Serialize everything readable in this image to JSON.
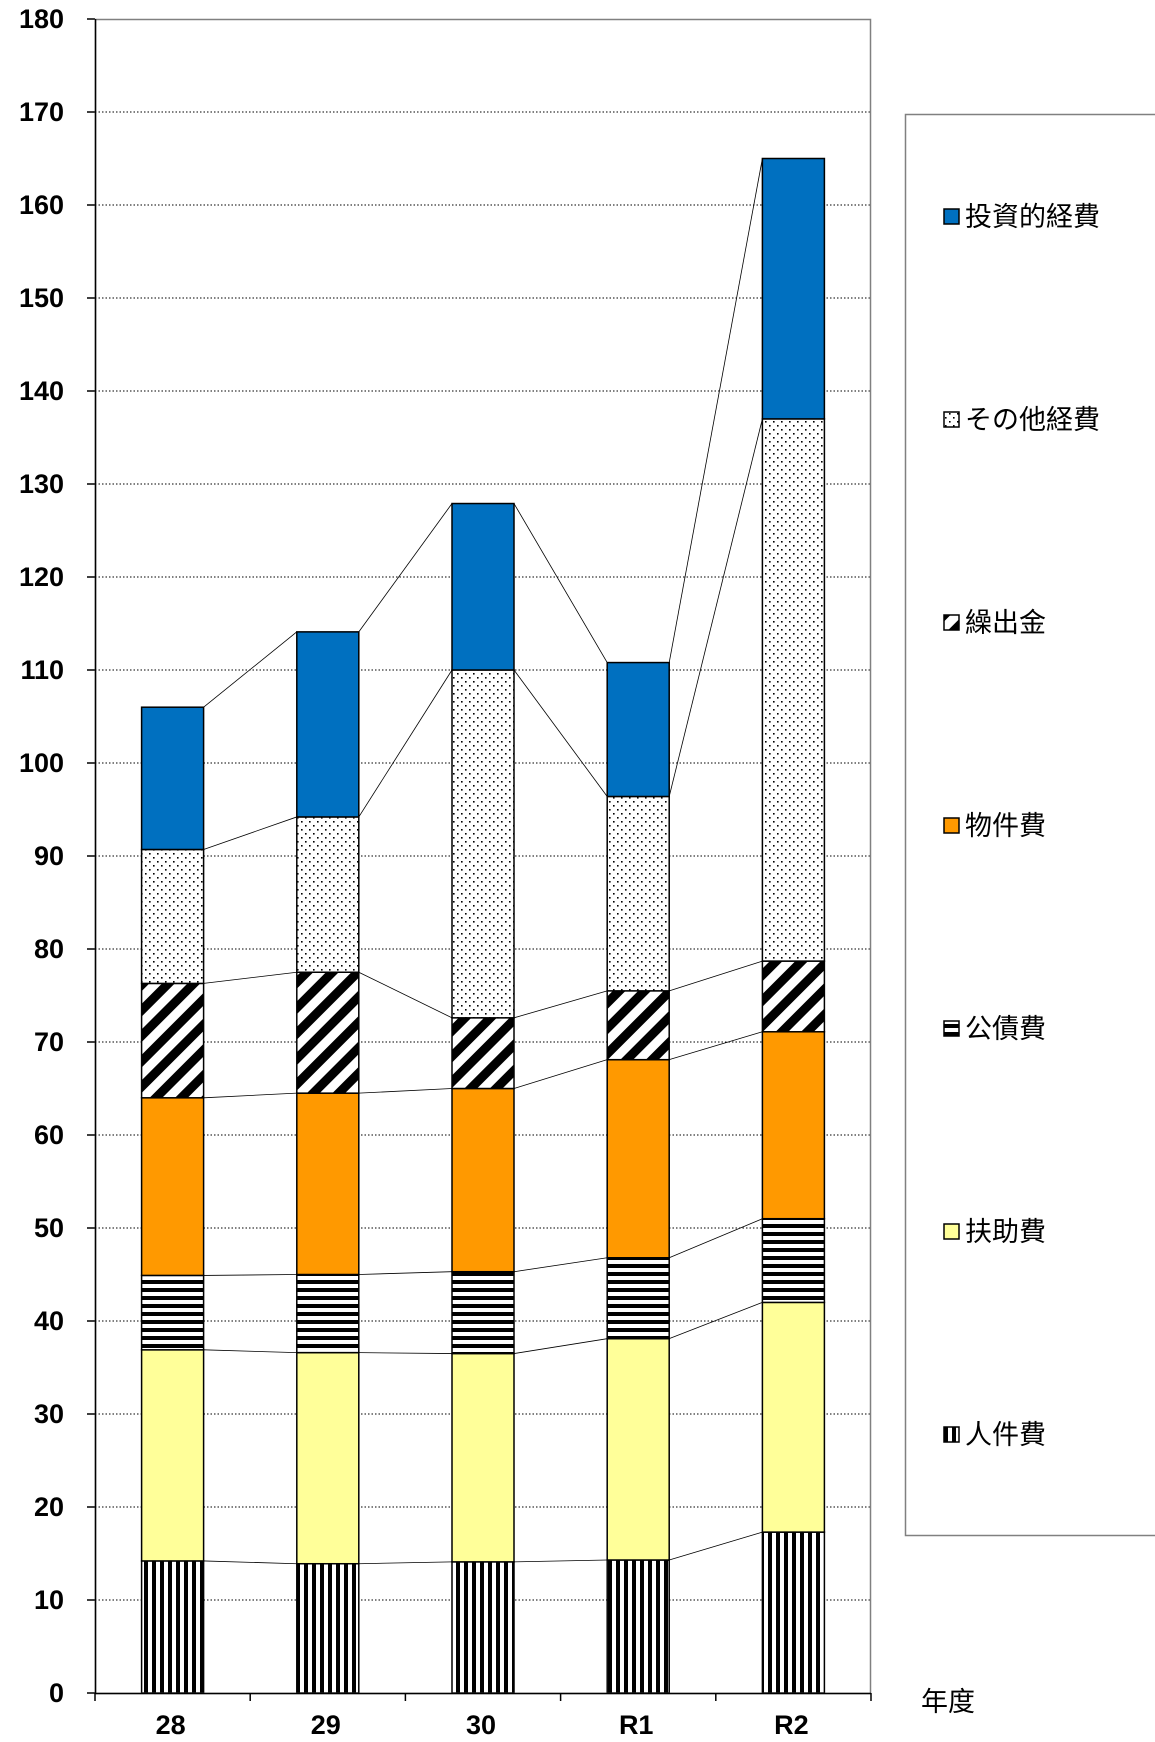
{
  "chart_data": {
    "type": "bar",
    "stacked": true,
    "categories": [
      "28",
      "29",
      "30",
      "R1",
      "R2"
    ],
    "xlabel": "年度",
    "ylabel": "",
    "ylim": [
      0,
      180
    ],
    "yticks": [
      0,
      10,
      20,
      30,
      40,
      50,
      60,
      70,
      80,
      90,
      100,
      110,
      120,
      130,
      140,
      150,
      160,
      170,
      180
    ],
    "grid": "dotted horizontal",
    "legend_position": "right",
    "series_lines": true,
    "series": [
      {
        "name": "人件費",
        "pattern": "vertical-stripes",
        "color": "#000000",
        "values": [
          14.2,
          13.9,
          14.1,
          14.3,
          17.3
        ]
      },
      {
        "name": "扶助費",
        "pattern": "solid",
        "color": "#FFFF99",
        "values": [
          22.7,
          22.7,
          22.4,
          23.8,
          24.7
        ]
      },
      {
        "name": "公債費",
        "pattern": "horizontal-stripes",
        "color": "#000000",
        "values": [
          8.0,
          8.4,
          8.8,
          8.7,
          9.0
        ]
      },
      {
        "name": "物件費",
        "pattern": "solid",
        "color": "#FF9900",
        "values": [
          19.1,
          19.5,
          19.7,
          21.3,
          20.1
        ]
      },
      {
        "name": "繰出金",
        "pattern": "diagonal-stripes",
        "color": "#000000",
        "values": [
          12.3,
          13.0,
          7.6,
          7.4,
          7.6
        ]
      },
      {
        "name": "その他経費",
        "pattern": "dots",
        "color": "#000000",
        "values": [
          14.4,
          16.7,
          37.4,
          20.9,
          58.3
        ]
      },
      {
        "name": "投資的経費",
        "pattern": "solid",
        "color": "#0070C0",
        "values": [
          15.3,
          19.9,
          17.9,
          14.4,
          28.0
        ]
      }
    ]
  }
}
